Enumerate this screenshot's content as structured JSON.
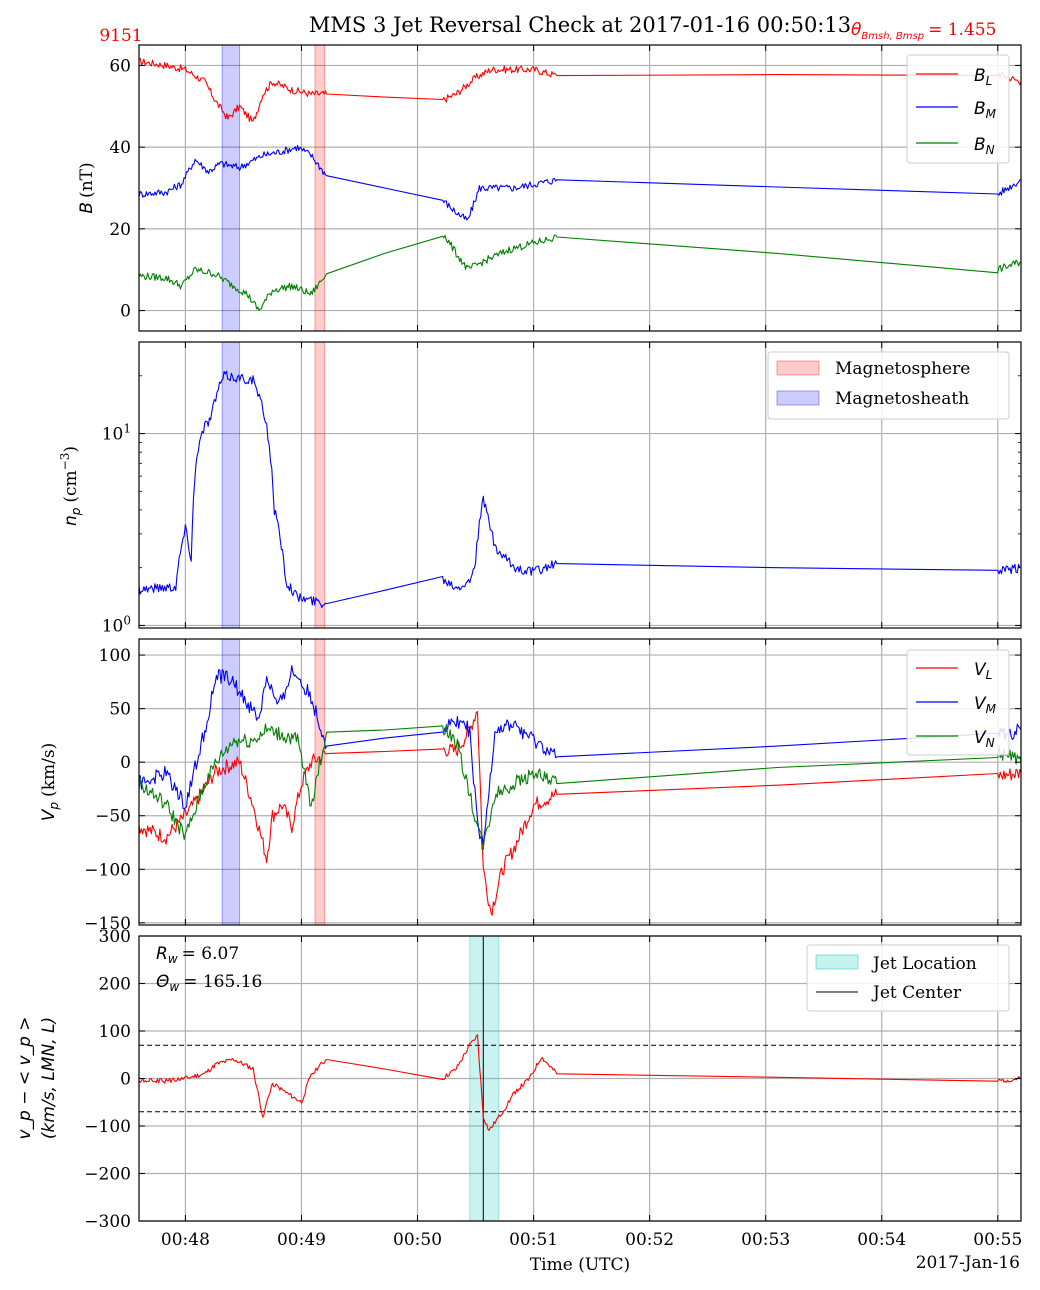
{
  "header": {
    "title": "MMS 3 Jet Reversal Check at 2017-01-16 00:50:13",
    "event_id": "9151",
    "angle_label": "θ",
    "angle_sub": "Bmsh, Bmsp",
    "angle_value": "= 1.455",
    "red": "#ff0000"
  },
  "xaxis": {
    "range": [
      "00:47:36",
      "00:55:12"
    ],
    "ticks": [
      "00:48",
      "00:49",
      "00:50",
      "00:51",
      "00:52",
      "00:53",
      "00:54",
      "00:55"
    ],
    "label": "Time (UTC)",
    "date": "2017-Jan-16"
  },
  "shading": {
    "magnetosheath": {
      "start": "00:48:19",
      "end": "00:48:28",
      "color": "#0000ff"
    },
    "magnetosphere": {
      "start": "00:49:07",
      "end": "00:49:12",
      "color": "#ff0000"
    },
    "jet_location": {
      "start": "00:50:27",
      "end": "00:50:42",
      "color": "#40d0c8"
    },
    "jet_center": "00:50:34"
  },
  "chart_data": [
    {
      "type": "line",
      "ylabel": "B (nT)",
      "ylim": [
        -5,
        65
      ],
      "yticks": [
        "60",
        "40",
        "20",
        "0"
      ],
      "legend": "top-right",
      "series": [
        {
          "name": "B_L",
          "color": "#ff0000",
          "x": [
            "00:47:36",
            "00:47:50",
            "00:48:00",
            "00:48:10",
            "00:48:16",
            "00:48:22",
            "00:48:28",
            "00:48:35",
            "00:48:40",
            "00:48:45",
            "00:48:55",
            "00:49:05",
            "00:49:13",
            "00:50:13",
            "00:50:20",
            "00:50:30",
            "00:50:38",
            "00:50:48",
            "00:51:00",
            "00:51:12",
            "00:55:00",
            "00:55:12"
          ],
          "y": [
            61,
            60,
            59,
            56,
            51,
            47,
            50,
            46,
            53,
            56,
            54,
            53,
            53,
            51.5,
            53,
            57,
            59,
            59,
            59,
            57.5,
            58,
            56
          ]
        },
        {
          "name": "B_M",
          "color": "#0000ff",
          "x": [
            "00:47:36",
            "00:47:50",
            "00:47:58",
            "00:48:05",
            "00:48:12",
            "00:48:18",
            "00:48:28",
            "00:48:40",
            "00:48:50",
            "00:48:58",
            "00:49:05",
            "00:49:13",
            "00:50:13",
            "00:50:20",
            "00:50:26",
            "00:50:32",
            "00:50:38",
            "00:50:50",
            "00:51:12",
            "00:55:00",
            "00:55:12"
          ],
          "y": [
            28.5,
            29,
            31,
            37,
            34,
            36,
            35,
            38,
            39,
            40,
            38,
            33,
            27,
            24,
            22,
            30,
            30,
            30,
            32,
            28.5,
            32
          ]
        },
        {
          "name": "B_N",
          "color": "#008000",
          "x": [
            "00:47:36",
            "00:47:50",
            "00:47:58",
            "00:48:05",
            "00:48:15",
            "00:48:25",
            "00:48:32",
            "00:48:38",
            "00:48:45",
            "00:48:55",
            "00:49:05",
            "00:49:13",
            "00:50:13",
            "00:50:20",
            "00:50:26",
            "00:50:34",
            "00:50:48",
            "00:51:12",
            "00:55:00",
            "00:55:12"
          ],
          "y": [
            8.5,
            8,
            6,
            10,
            9,
            6,
            4,
            0,
            5,
            6,
            4,
            9,
            19,
            14,
            10,
            12,
            15,
            18,
            10,
            12
          ]
        }
      ]
    },
    {
      "type": "line",
      "ylabel": "n_p (cm^-3)",
      "yscale": "log",
      "ylim": [
        0.97,
        30
      ],
      "yticks": [
        "10^0",
        "10^1"
      ],
      "legend": "top-right",
      "series": [
        {
          "name": "n_p",
          "color": "#0000ff",
          "x": [
            "00:47:36",
            "00:47:55",
            "00:47:58",
            "00:48:00",
            "00:48:03",
            "00:48:06",
            "00:48:10",
            "00:48:13",
            "00:48:17",
            "00:48:20",
            "00:48:35",
            "00:48:42",
            "00:48:46",
            "00:48:52",
            "00:48:58",
            "00:49:05",
            "00:49:13",
            "00:50:13",
            "00:50:20",
            "00:50:27",
            "00:50:30",
            "00:50:34",
            "00:50:40",
            "00:50:50",
            "00:51:00",
            "00:51:12",
            "00:55:00",
            "00:55:12"
          ],
          "y": [
            1.55,
            1.6,
            2.6,
            3.2,
            2.2,
            8,
            11,
            12,
            17,
            20,
            19,
            11,
            4,
            1.7,
            1.4,
            1.35,
            1.3,
            1.75,
            1.6,
            1.7,
            2.2,
            4.5,
            2.5,
            2,
            1.9,
            2.1,
            1.9,
            2
          ]
        }
      ]
    },
    {
      "type": "line",
      "ylabel": "V_p (km/s)",
      "ylim": [
        -152,
        115
      ],
      "yticks": [
        "100",
        "50",
        "0",
        "−50",
        "−100",
        "−150"
      ],
      "legend": "top-right",
      "series": [
        {
          "name": "V_L",
          "color": "#ff0000",
          "x": [
            "00:47:36",
            "00:47:50",
            "00:48:00",
            "00:48:08",
            "00:48:15",
            "00:48:20",
            "00:48:28",
            "00:48:35",
            "00:48:42",
            "00:48:45",
            "00:48:50",
            "00:48:55",
            "00:49:00",
            "00:49:05",
            "00:49:13",
            "00:50:13",
            "00:50:20",
            "00:50:27",
            "00:50:31",
            "00:50:34",
            "00:50:38",
            "00:50:44",
            "00:50:50",
            "00:51:00",
            "00:51:12",
            "00:55:00",
            "00:55:12"
          ],
          "y": [
            -60,
            -70,
            -50,
            -30,
            -10,
            -5,
            0,
            -40,
            -90,
            -50,
            -40,
            -60,
            -20,
            0,
            8,
            12,
            10,
            30,
            50,
            -100,
            -140,
            -100,
            -80,
            -40,
            -30,
            -13,
            -10
          ]
        },
        {
          "name": "V_M",
          "color": "#0000ff",
          "x": [
            "00:47:36",
            "00:47:50",
            "00:48:00",
            "00:48:10",
            "00:48:16",
            "00:48:22",
            "00:48:30",
            "00:48:38",
            "00:48:42",
            "00:48:48",
            "00:48:55",
            "00:49:00",
            "00:49:05",
            "00:49:13",
            "00:50:13",
            "00:50:20",
            "00:50:27",
            "00:50:31",
            "00:50:34",
            "00:50:40",
            "00:50:50",
            "00:51:00",
            "00:51:12",
            "00:55:00",
            "00:55:12"
          ],
          "y": [
            -20,
            -10,
            -40,
            30,
            80,
            80,
            60,
            40,
            80,
            50,
            85,
            75,
            60,
            15,
            30,
            40,
            30,
            -60,
            -80,
            30,
            35,
            20,
            5,
            25,
            30
          ]
        },
        {
          "name": "V_N",
          "color": "#008000",
          "x": [
            "00:47:36",
            "00:47:50",
            "00:48:00",
            "00:48:10",
            "00:48:16",
            "00:48:25",
            "00:48:35",
            "00:48:42",
            "00:48:50",
            "00:48:58",
            "00:49:05",
            "00:49:13",
            "00:50:13",
            "00:50:20",
            "00:50:27",
            "00:50:31",
            "00:50:34",
            "00:50:40",
            "00:50:50",
            "00:51:00",
            "00:51:12",
            "00:55:00",
            "00:55:12"
          ],
          "y": [
            -20,
            -40,
            -70,
            -20,
            0,
            20,
            20,
            30,
            25,
            20,
            -40,
            28,
            32,
            20,
            -30,
            -60,
            -80,
            -30,
            -20,
            -10,
            -20,
            10,
            0
          ]
        }
      ]
    },
    {
      "type": "line",
      "ylabel_line1": "v_p − < v_p >",
      "ylabel_line2": "(km/s, LMN, L)",
      "ylim": [
        -300,
        300
      ],
      "yticks": [
        "300",
        "200",
        "100",
        "0",
        "−100",
        "−200",
        "−300"
      ],
      "thresholds": [
        70,
        -70
      ],
      "annotation_rw": "R_w = 6.07",
      "annotation_theta": "Θ_w = 165.16",
      "legend": "top-right",
      "series": [
        {
          "name": "v_p - <v_p>",
          "color": "#ff0000",
          "x": [
            "00:47:36",
            "00:47:50",
            "00:48:00",
            "00:48:10",
            "00:48:16",
            "00:48:25",
            "00:48:35",
            "00:48:40",
            "00:48:45",
            "00:48:52",
            "00:49:00",
            "00:49:05",
            "00:49:13",
            "00:50:13",
            "00:50:20",
            "00:50:27",
            "00:50:31",
            "00:50:34",
            "00:50:37",
            "00:50:44",
            "00:50:50",
            "00:50:58",
            "00:51:04",
            "00:51:12",
            "00:55:00",
            "00:55:12"
          ],
          "y": [
            -5,
            -5,
            0,
            10,
            30,
            40,
            20,
            -80,
            -10,
            -30,
            -50,
            10,
            40,
            0,
            20,
            70,
            90,
            -80,
            -110,
            -70,
            -30,
            0,
            45,
            10,
            -5,
            0
          ]
        }
      ]
    }
  ],
  "legend1": {
    "b_l": {
      "sym": "B",
      "sub": "L",
      "color": "#ff0000"
    },
    "b_m": {
      "sym": "B",
      "sub": "M",
      "color": "#0000ff"
    },
    "b_n": {
      "sym": "B",
      "sub": "N",
      "color": "#008000"
    }
  },
  "legend2": {
    "magnetosphere": "Magnetosphere",
    "magnetosheath": "Magnetosheath"
  },
  "legend3": {
    "v_l": {
      "sym": "V",
      "sub": "L",
      "color": "#ff0000"
    },
    "v_m": {
      "sym": "V",
      "sub": "M",
      "color": "#0000ff"
    },
    "v_n": {
      "sym": "V",
      "sub": "N",
      "color": "#008000"
    }
  },
  "legend4": {
    "jet_location": "Jet Location",
    "jet_center": "Jet Center"
  },
  "labels": {
    "b_sym": "B",
    "b_unit": "(nT)",
    "np_sym": "n",
    "np_sub": "p",
    "np_unit": "(cm",
    "np_exp": "−3",
    "np_close": ")",
    "vp_sym": "V",
    "vp_sub": "p",
    "vp_unit": "(km/s)",
    "rw_sym": "R",
    "rw_sub": "w",
    "rw_val": "= 6.07",
    "th_sym": "Θ",
    "th_sub": "w",
    "th_val": "= 165.16",
    "p4_line1": "v_p − < v_p >",
    "p4_line2": "(km/s, LMN, L)"
  }
}
